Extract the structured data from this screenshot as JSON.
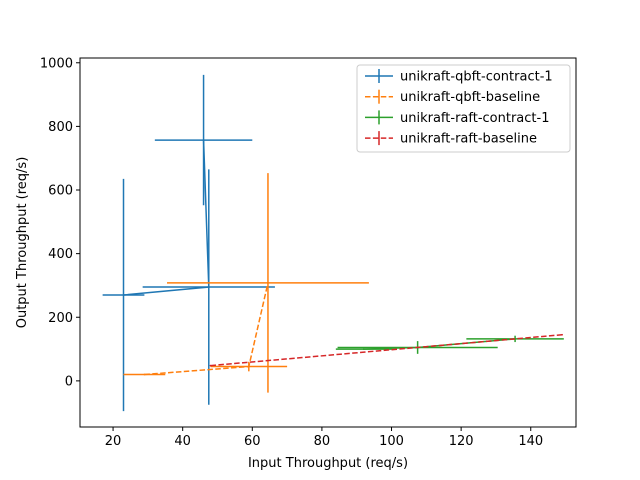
{
  "chart_data": {
    "type": "line",
    "title": "",
    "xlabel": "Input Throughput (req/s)",
    "ylabel": "Output Throughput (req/s)",
    "xlim": [
      10.5,
      153
    ],
    "ylim": [
      -145,
      1015
    ],
    "xticks": [
      20,
      40,
      60,
      80,
      100,
      120,
      140
    ],
    "yticks": [
      0,
      200,
      400,
      600,
      800,
      1000
    ],
    "grid": false,
    "legend_position": "top-right",
    "series": [
      {
        "name": "unikraft-qbft-contract-1",
        "color": "#1f77b4",
        "linestyle": "solid",
        "points": [
          {
            "x": 46,
            "y": 757,
            "xerr": 14,
            "yerr": 205
          },
          {
            "x": 47.5,
            "y": 295,
            "xerr": 19,
            "yerr": 370
          },
          {
            "x": 23,
            "y": 270,
            "xerr": 6,
            "yerr": 365
          }
        ]
      },
      {
        "name": "unikraft-qbft-baseline",
        "color": "#ff7f0e",
        "linestyle": "dashed",
        "points": [
          {
            "x": 29,
            "y": 20,
            "xerr": 6,
            "yerr": 0
          },
          {
            "x": 59,
            "y": 45,
            "xerr": 11,
            "yerr": 15
          },
          {
            "x": 64.5,
            "y": 308,
            "xerr": 29,
            "yerr": 345
          }
        ]
      },
      {
        "name": "unikraft-raft-contract-1",
        "color": "#2ca02c",
        "linestyle": "solid",
        "points": [
          {
            "x": 92,
            "y": 100,
            "xerr": 8,
            "yerr": 0
          },
          {
            "x": 107.5,
            "y": 105,
            "xerr": 23,
            "yerr": 20
          },
          {
            "x": 135.5,
            "y": 132,
            "xerr": 14,
            "yerr": 10
          }
        ]
      },
      {
        "name": "unikraft-raft-baseline",
        "color": "#d62728",
        "linestyle": "dashed",
        "points": [
          {
            "x": 48,
            "y": 48,
            "xerr": 0,
            "yerr": 0
          },
          {
            "x": 149,
            "y": 145,
            "xerr": 0,
            "yerr": 0
          }
        ]
      }
    ]
  }
}
